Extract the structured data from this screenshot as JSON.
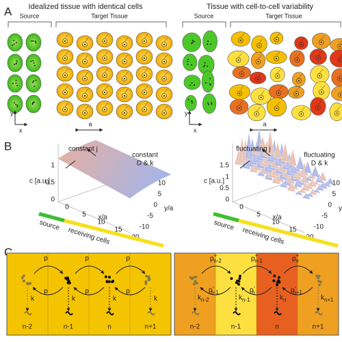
{
  "panel_A": {
    "label": "A",
    "left": {
      "title": "Idealized tissue with identical cells",
      "source": "Source",
      "target": "Target Tissue"
    },
    "right": {
      "title": "Tissue with cell-to-cell variability",
      "source": "Source",
      "target": "Target Tissue"
    },
    "axis_y": "y",
    "axis_x": "x",
    "spacing": "a"
  },
  "panel_B": {
    "label": "B",
    "left": {
      "annotation_j": "constant j",
      "annotation_dk": [
        "constant",
        "D & k"
      ],
      "z_label": "c [a.u.]",
      "z_ticks": [
        "1",
        "0.5",
        "0"
      ],
      "x_ticks": [
        "0",
        "5",
        "10",
        "15",
        "20"
      ],
      "x_label": "x/a",
      "y_ticks": [
        "10",
        "5",
        "0",
        "-5",
        "-10"
      ],
      "y_label": "y/a",
      "bar_source": "source",
      "bar_cells": "receiving cells"
    },
    "right": {
      "annotation_j": "fluctuating j",
      "annotation_dk": [
        "fluctuating",
        "D & k"
      ],
      "z_label": "c [a.u.]",
      "z_ticks": [
        "1.5",
        "1",
        "0.5",
        "0"
      ],
      "x_ticks": [
        "0",
        "5",
        "10",
        "15",
        "20"
      ],
      "x_label": "x/a",
      "y_ticks": [
        "10",
        "5",
        "0",
        "-5",
        "-10"
      ],
      "y_label": "y/a",
      "bar_source": "source",
      "bar_cells": "receiving cells"
    }
  },
  "panel_C": {
    "label": "C",
    "left": {
      "top_rates": [
        "p",
        "p",
        "p"
      ],
      "bottom_rates": [
        "p",
        "p",
        "p"
      ],
      "decay": [
        "k",
        "k",
        "k",
        "k"
      ],
      "cells": [
        "n-2",
        "n-1",
        "n",
        "n+1"
      ]
    },
    "right": {
      "top_rates": [
        {
          "base": "p",
          "sup": "+",
          "sub": "n-2"
        },
        {
          "base": "p",
          "sup": "+",
          "sub": "n-1"
        },
        {
          "base": "p",
          "sup": "+",
          "sub": "n"
        }
      ],
      "bottom_rates": [
        {
          "base": "p",
          "sup": "-",
          "sub": "n-1"
        },
        {
          "base": "p",
          "sup": "-",
          "sub": "n"
        },
        {
          "base": "p",
          "sup": "-",
          "sub": "n+1"
        }
      ],
      "decay": [
        {
          "base": "k",
          "sub": "n-2"
        },
        {
          "base": "k",
          "sub": "n-1"
        },
        {
          "base": "k",
          "sub": "n"
        },
        {
          "base": "k",
          "sub": "n+1"
        }
      ],
      "cells": [
        "n-2",
        "n-1",
        "n",
        "n+1"
      ]
    }
  }
}
